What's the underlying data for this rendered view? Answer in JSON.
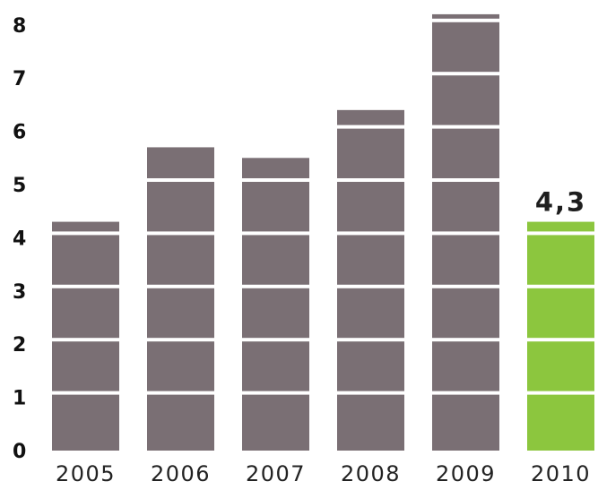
{
  "chart_data": {
    "type": "bar",
    "title": "",
    "xlabel": "",
    "ylabel": "",
    "categories": [
      "2005",
      "2006",
      "2007",
      "2008",
      "2009",
      "2010"
    ],
    "values": [
      4.3,
      5.7,
      5.5,
      6.4,
      8.2,
      4.3
    ],
    "ylim": [
      0,
      8.3
    ],
    "yticks": [
      "0",
      "1",
      "2",
      "3",
      "4",
      "5",
      "6",
      "7",
      "8"
    ],
    "data_labels": [
      {
        "category": "2010",
        "text": "4,3"
      }
    ],
    "colors": {
      "default_bar": "#7a6f74",
      "highlight_bar": "#8cc63e",
      "segment_separator": "#ffffff"
    },
    "highlight_category": "2010",
    "grid": false,
    "legend": "none"
  }
}
